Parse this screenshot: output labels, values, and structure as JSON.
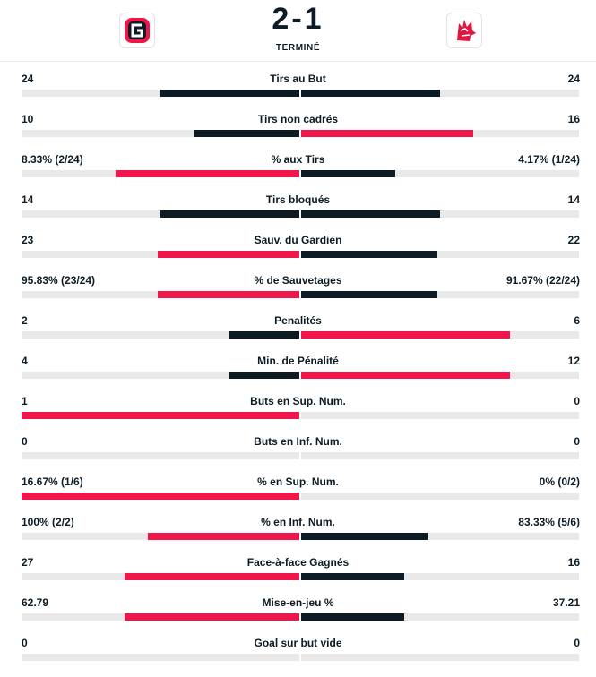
{
  "match": {
    "score": "2-1",
    "status": "TERMINÉ",
    "home_logo_icon": "fribourg-gotteron-logo",
    "away_logo_icon": "lausanne-hc-logo"
  },
  "colors": {
    "dark": "#0d1b24",
    "red": "#f0164a",
    "track": "#e9e9e9"
  },
  "stats": [
    {
      "label": "Tirs au But",
      "home": "24",
      "away": "24",
      "home_frac": 0.5,
      "away_frac": 0.5,
      "home_color": "#0d1b24",
      "away_color": "#0d1b24"
    },
    {
      "label": "Tirs non cadrés",
      "home": "10",
      "away": "16",
      "home_frac": 0.38,
      "away_frac": 0.62,
      "home_color": "#0d1b24",
      "away_color": "#f0164a"
    },
    {
      "label": "% aux Tirs",
      "home": "8.33% (2/24)",
      "away": "4.17% (1/24)",
      "home_frac": 0.66,
      "away_frac": 0.34,
      "home_color": "#f0164a",
      "away_color": "#0d1b24"
    },
    {
      "label": "Tirs bloqués",
      "home": "14",
      "away": "14",
      "home_frac": 0.5,
      "away_frac": 0.5,
      "home_color": "#0d1b24",
      "away_color": "#0d1b24"
    },
    {
      "label": "Sauv. du Gardien",
      "home": "23",
      "away": "22",
      "home_frac": 0.51,
      "away_frac": 0.49,
      "home_color": "#f0164a",
      "away_color": "#0d1b24"
    },
    {
      "label": "% de Sauvetages",
      "home": "95.83% (23/24)",
      "away": "91.67% (22/24)",
      "home_frac": 0.51,
      "away_frac": 0.49,
      "home_color": "#f0164a",
      "away_color": "#0d1b24"
    },
    {
      "label": "Penalités",
      "home": "2",
      "away": "6",
      "home_frac": 0.25,
      "away_frac": 0.75,
      "home_color": "#0d1b24",
      "away_color": "#f0164a"
    },
    {
      "label": "Min. de Pénalité",
      "home": "4",
      "away": "12",
      "home_frac": 0.25,
      "away_frac": 0.75,
      "home_color": "#0d1b24",
      "away_color": "#f0164a"
    },
    {
      "label": "Buts en Sup. Num.",
      "home": "1",
      "away": "0",
      "home_frac": 1.0,
      "away_frac": 0,
      "home_color": "#f0164a",
      "away_color": "#0d1b24"
    },
    {
      "label": "Buts en Inf. Num.",
      "home": "0",
      "away": "0",
      "home_frac": 0,
      "away_frac": 0,
      "home_color": "#0d1b24",
      "away_color": "#0d1b24"
    },
    {
      "label": "% en Sup. Num.",
      "home": "16.67% (1/6)",
      "away": "0% (0/2)",
      "home_frac": 1.0,
      "away_frac": 0,
      "home_color": "#f0164a",
      "away_color": "#0d1b24"
    },
    {
      "label": "% en Inf. Num.",
      "home": "100% (2/2)",
      "away": "83.33% (5/6)",
      "home_frac": 0.545,
      "away_frac": 0.455,
      "home_color": "#f0164a",
      "away_color": "#0d1b24"
    },
    {
      "label": "Face-à-face Gagnés",
      "home": "27",
      "away": "16",
      "home_frac": 0.628,
      "away_frac": 0.372,
      "home_color": "#f0164a",
      "away_color": "#0d1b24"
    },
    {
      "label": "Mise-en-jeu %",
      "home": "62.79",
      "away": "37.21",
      "home_frac": 0.628,
      "away_frac": 0.372,
      "home_color": "#f0164a",
      "away_color": "#0d1b24"
    },
    {
      "label": "Goal sur but vide",
      "home": "0",
      "away": "0",
      "home_frac": 0,
      "away_frac": 0,
      "home_color": "#0d1b24",
      "away_color": "#0d1b24"
    }
  ]
}
